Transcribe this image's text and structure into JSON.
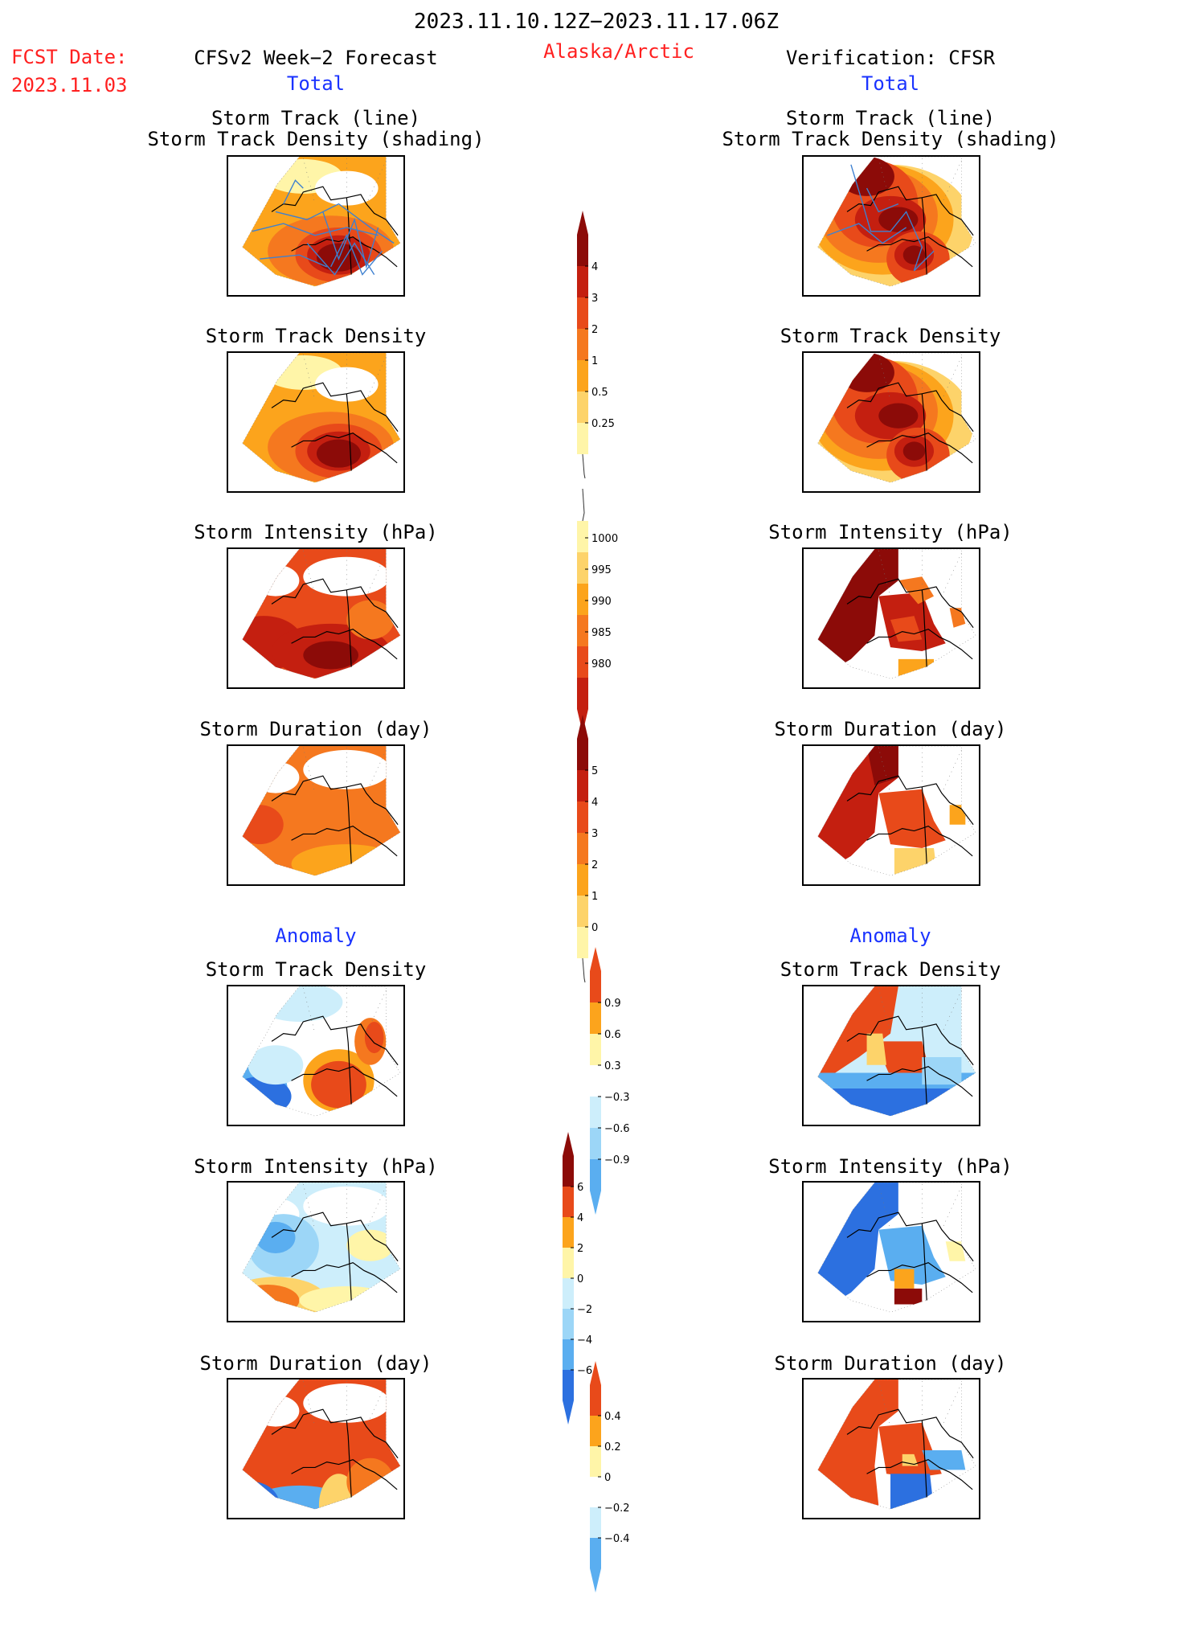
{
  "header": {
    "date_range": "2023.11.10.12Z−2023.11.17.06Z",
    "fcst_date_label": "FCST Date:",
    "fcst_date_value": "2023.11.03",
    "region": "Alaska/Arctic",
    "forecast_title": "CFSv2 Week−2 Forecast",
    "verification_title": "Verification: CFSR"
  },
  "sections": {
    "total_label": "Total",
    "anomaly_label": "Anomaly"
  },
  "panel_titles": {
    "storm_track_line": "Storm Track (line)",
    "storm_track_density_shading": "Storm Track Density (shading)",
    "storm_track_density": "Storm Track Density",
    "storm_intensity": "Storm Intensity (hPa)",
    "storm_duration": "Storm Duration (day)"
  },
  "colorbars": {
    "track_density": [
      "0.25",
      "0.5",
      "1",
      "2",
      "3",
      "4"
    ],
    "intensity": [
      "1000",
      "995",
      "990",
      "985",
      "980"
    ],
    "duration": [
      "0",
      "1",
      "2",
      "3",
      "4",
      "5"
    ],
    "density_anomaly": [
      "0.9",
      "0.6",
      "0.3",
      "−0.3",
      "−0.6",
      "−0.9"
    ],
    "intensity_anomaly": [
      "6",
      "4",
      "2",
      "0",
      "−2",
      "−4",
      "−6"
    ],
    "duration_anomaly": [
      "0.4",
      "0.2",
      "0",
      "−0.2",
      "−0.4"
    ]
  },
  "colors": {
    "warm": [
      "#fff5a8",
      "#fdd36a",
      "#fca41c",
      "#f5781f",
      "#e84a1a",
      "#c41f10",
      "#8c0b08"
    ],
    "cool": [
      "#cdeefb",
      "#9cd6f7",
      "#5aaef0",
      "#2c70e0"
    ]
  },
  "chart_data": [
    {
      "type": "heatmap",
      "panel": "forecast-track-density-shading",
      "colorbar": "track_density",
      "tracks": "forecast"
    },
    {
      "type": "heatmap",
      "panel": "verification-track-density-shading",
      "colorbar": "track_density",
      "tracks": "verification"
    },
    {
      "type": "heatmap",
      "panel": "forecast-track-density",
      "colorbar": "track_density"
    },
    {
      "type": "heatmap",
      "panel": "verification-track-density",
      "colorbar": "track_density"
    },
    {
      "type": "heatmap",
      "panel": "forecast-storm-intensity",
      "colorbar": "intensity"
    },
    {
      "type": "heatmap",
      "panel": "verification-storm-intensity",
      "colorbar": "intensity"
    },
    {
      "type": "heatmap",
      "panel": "forecast-storm-duration",
      "colorbar": "duration"
    },
    {
      "type": "heatmap",
      "panel": "verification-storm-duration",
      "colorbar": "duration"
    },
    {
      "type": "heatmap",
      "panel": "forecast-density-anomaly",
      "colorbar": "density_anomaly"
    },
    {
      "type": "heatmap",
      "panel": "verification-density-anomaly",
      "colorbar": "density_anomaly"
    },
    {
      "type": "heatmap",
      "panel": "forecast-intensity-anomaly",
      "colorbar": "intensity_anomaly"
    },
    {
      "type": "heatmap",
      "panel": "verification-intensity-anomaly",
      "colorbar": "intensity_anomaly"
    },
    {
      "type": "heatmap",
      "panel": "forecast-duration-anomaly",
      "colorbar": "duration_anomaly"
    },
    {
      "type": "heatmap",
      "panel": "verification-duration-anomaly",
      "colorbar": "duration_anomaly"
    }
  ]
}
